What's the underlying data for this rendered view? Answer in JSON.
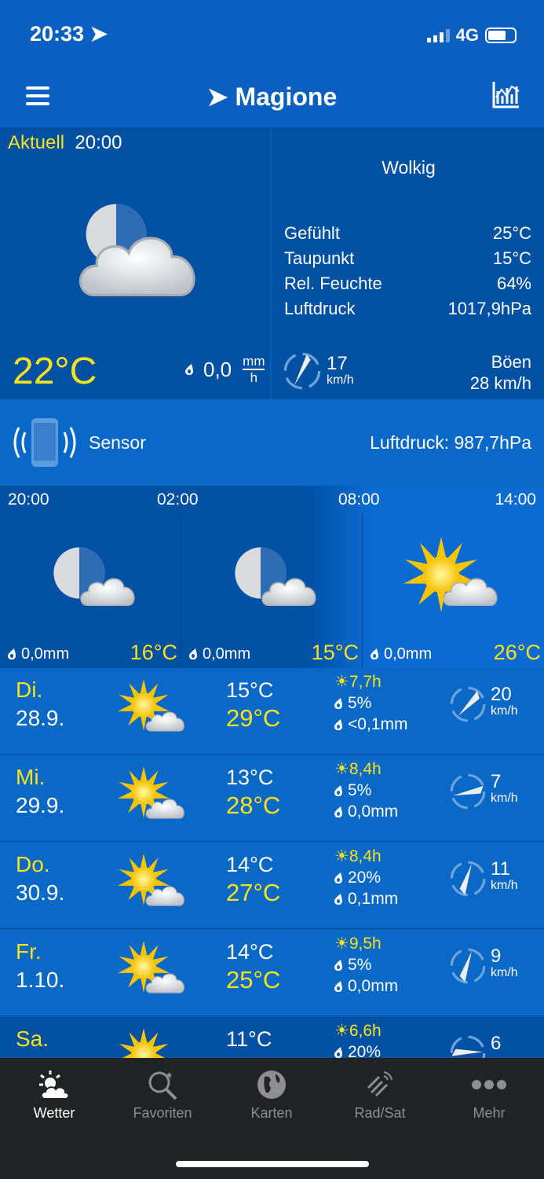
{
  "status": {
    "time": "20:33",
    "network": "4G",
    "battery_level": 0.7
  },
  "header": {
    "location": "Magione",
    "menu_icon": "hamburger-icon",
    "chart_icon": "chart-icon"
  },
  "current": {
    "label": "Aktuell",
    "time": "20:00",
    "condition": "Wolkig",
    "temperature": "22°C",
    "rain": "0,0",
    "rain_unit_top": "mm",
    "rain_unit_bottom": "h",
    "stats": [
      {
        "label": "Gefühlt",
        "value": "25°C"
      },
      {
        "label": "Taupunkt",
        "value": "15°C"
      },
      {
        "label": "Rel. Feuchte",
        "value": "64%"
      },
      {
        "label": "Luftdruck",
        "value": "1017,9hPa"
      }
    ],
    "wind_speed": "17",
    "wind_unit": "km/h",
    "gust_label": "Böen",
    "gust_value": "28 km/h"
  },
  "sensor": {
    "label": "Sensor",
    "pressure": "Luftdruck: 987,7hPa"
  },
  "hourly": [
    {
      "time": "20:00",
      "rain": "0,0mm",
      "temp": "16°C",
      "icon": "moon-cloud"
    },
    {
      "time": "02:00",
      "rain": "0,0mm",
      "temp": "15°C",
      "icon": "moon-cloud"
    },
    {
      "time": "08:00",
      "rain": "0,0mm",
      "temp": "26°C",
      "icon": "sun-cloud"
    },
    {
      "time": "14:00"
    }
  ],
  "days": [
    {
      "name": "Di.",
      "date": "28.9.",
      "min": "15°C",
      "max": "29°C",
      "sun": "7,7h",
      "prob": "5%",
      "amount": "<0,1mm",
      "wind": "20",
      "unit": "km/h"
    },
    {
      "name": "Mi.",
      "date": "29.9.",
      "min": "13°C",
      "max": "28°C",
      "sun": "8,4h",
      "prob": "5%",
      "amount": "0,0mm",
      "wind": "7",
      "unit": "km/h"
    },
    {
      "name": "Do.",
      "date": "30.9.",
      "min": "14°C",
      "max": "27°C",
      "sun": "8,4h",
      "prob": "20%",
      "amount": "0,1mm",
      "wind": "11",
      "unit": "km/h"
    },
    {
      "name": "Fr.",
      "date": "1.10.",
      "min": "14°C",
      "max": "25°C",
      "sun": "9,5h",
      "prob": "5%",
      "amount": "0,0mm",
      "wind": "9",
      "unit": "km/h"
    },
    {
      "name": "Sa.",
      "date": "",
      "min": "11°C",
      "max": "",
      "sun": "6,6h",
      "prob": "20%",
      "amount": "",
      "wind": "6",
      "unit": ""
    }
  ],
  "tabs": [
    {
      "label": "Wetter",
      "active": true
    },
    {
      "label": "Favoriten"
    },
    {
      "label": "Karten"
    },
    {
      "label": "Rad/Sat"
    },
    {
      "label": "Mehr"
    }
  ],
  "colors": {
    "accent": "#f8e21c",
    "background": "#0b5fc0",
    "current_bg": "#0050a4",
    "tabbar": "#212325"
  }
}
